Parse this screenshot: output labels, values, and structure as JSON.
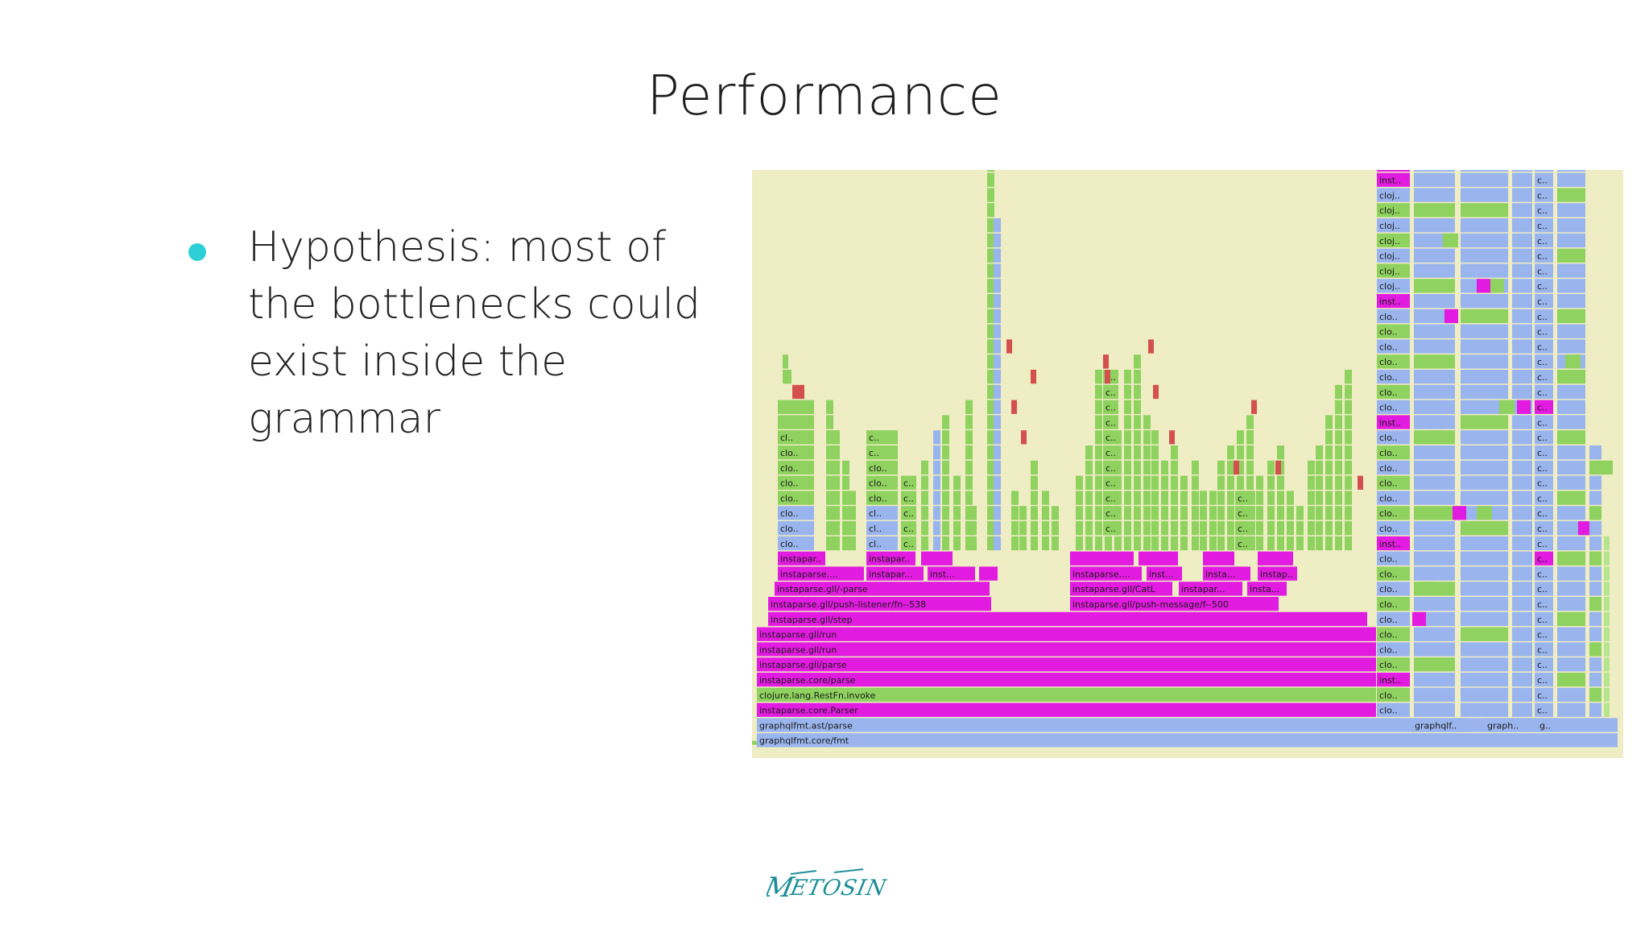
{
  "slide": {
    "title": "Performance",
    "bullet": {
      "text": "Hypothesis: most of the bottlenecks could exist inside the grammar",
      "lines": [
        "Hypothesis: most of",
        "the bottlenecks could",
        "exist inside the",
        "grammar"
      ],
      "dot_color": "#2ccfd6"
    },
    "logo_text": "METOSIN"
  },
  "colors": {
    "background": "#efedc4",
    "green": "#8fd25f",
    "blue": "#9ab5ee",
    "magenta": "#e21be0",
    "red": "#d4504f",
    "lightgreen": "#b7e48e"
  },
  "flamegraph": {
    "base_frames": [
      {
        "label": "graphqlfmt.core/fmt",
        "color": "blue"
      },
      {
        "label": "graphqlfmt.ast/parse",
        "color": "blue"
      },
      {
        "label": "instaparse.core.Parser",
        "color": "magenta"
      },
      {
        "label": "clojure.lang.RestFn.invoke",
        "color": "green"
      },
      {
        "label": "instaparse.core/parse",
        "color": "magenta"
      },
      {
        "label": "instaparse.gll/parse",
        "color": "magenta"
      },
      {
        "label": "instaparse.gll/run",
        "color": "magenta"
      },
      {
        "label": "instaparse.gll/run",
        "color": "magenta"
      },
      {
        "label": "instaparse.gll/step",
        "color": "magenta"
      }
    ],
    "mid_frames": [
      {
        "label": "instaparse.gll/push-listener/fn--538",
        "color": "magenta"
      },
      {
        "label": "instaparse.gll/push-message/f--500",
        "color": "magenta"
      },
      {
        "label": "instaparse.gll/-parse",
        "color": "magenta"
      },
      {
        "label": "instaparse.gll/CatL",
        "color": "magenta"
      },
      {
        "label": "instaparse....",
        "color": "magenta"
      },
      {
        "label": "instapar...",
        "color": "magenta"
      },
      {
        "label": "inst...",
        "color": "magenta"
      },
      {
        "label": "insta...",
        "color": "magenta"
      },
      {
        "label": "instapar..",
        "color": "magenta"
      },
      {
        "label": "instap..",
        "color": "magenta"
      }
    ],
    "left_stack_labels": [
      "clo..",
      "clo..",
      "clo..",
      "clo..",
      "clo..",
      "clo..",
      "clo..",
      "cl.."
    ],
    "cluster_labels": [
      "cl..",
      "cl..",
      "cl..",
      "clo..",
      "clo..",
      "clo..",
      "c..",
      "c.."
    ],
    "small_labels": [
      "c..",
      "c..",
      "c..",
      "c..",
      "c..",
      "c..",
      "c..",
      "c..",
      "c..",
      "c..",
      "c.."
    ],
    "right_column_labels": [
      "clo..",
      "clo..",
      "inst..",
      "clo..",
      "clo..",
      "clo..",
      "clo..",
      "clo..",
      "clo..",
      "clo..",
      "clo..",
      "inst..",
      "clo..",
      "clo..",
      "clo..",
      "clo..",
      "clo..",
      "clo..",
      "clo..",
      "inst..",
      "clo..",
      "clo..",
      "clo..",
      "clo..",
      "clo..",
      "clo..",
      "clo..",
      "inst..",
      "cloj..",
      "cloj..",
      "cloj..",
      "cloj..",
      "cloj..",
      "cloj..",
      "cloj..",
      "inst..",
      "inst.."
    ],
    "far_right_labels": [
      "c..",
      "c..",
      "c..",
      "c..",
      "c..",
      "c..",
      "c..",
      "c..",
      "c..",
      "c..",
      "c..",
      "c..",
      "c..",
      "c..",
      "c..",
      "c..",
      "c..",
      "c..",
      "c..",
      "c..",
      "c..",
      "c..",
      "c..",
      "c..",
      "c..",
      "c..",
      "c..",
      "c..",
      "c..",
      "c..",
      "c..",
      "c..",
      "c..",
      "c..",
      "c..",
      "c..",
      "g.."
    ],
    "bottom_right_labels": [
      "graphqlf..",
      "graph..",
      "g.."
    ]
  }
}
